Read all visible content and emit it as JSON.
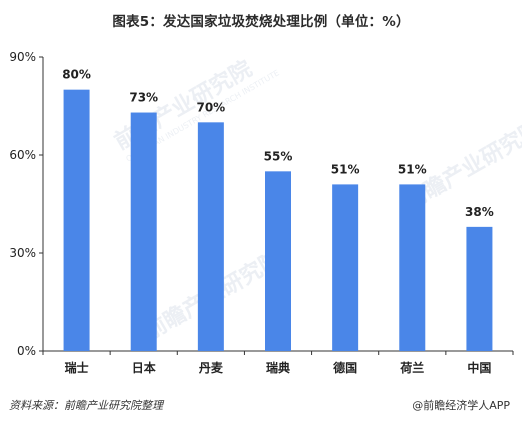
{
  "header": {
    "title": "图表5：发达国家垃圾焚烧处理比例（单位：%）"
  },
  "chart_data": {
    "type": "bar",
    "title": "图表5：发达国家垃圾焚烧处理比例（单位：%）",
    "categories": [
      "瑞士",
      "日本",
      "丹麦",
      "瑞典",
      "德国",
      "荷兰",
      "中国"
    ],
    "values": [
      80,
      73,
      70,
      55,
      51,
      51,
      38
    ],
    "value_labels": [
      "80%",
      "73%",
      "70%",
      "55%",
      "51%",
      "51%",
      "38%"
    ],
    "ylim": [
      0,
      90
    ],
    "yticks": [
      0,
      30,
      60,
      90
    ],
    "ytick_labels": [
      "0%",
      "30%",
      "60%",
      "90%"
    ],
    "grid": false,
    "bar_color": "#4a86e8"
  },
  "watermark": {
    "text": "前瞻产业研究院",
    "sub_text": "QIANZHAN INDUSTRY RESEARCH INSTITUTE"
  },
  "footer": {
    "source": "资料来源：前瞻产业研究院整理",
    "brand": "@前瞻经济学人APP"
  }
}
